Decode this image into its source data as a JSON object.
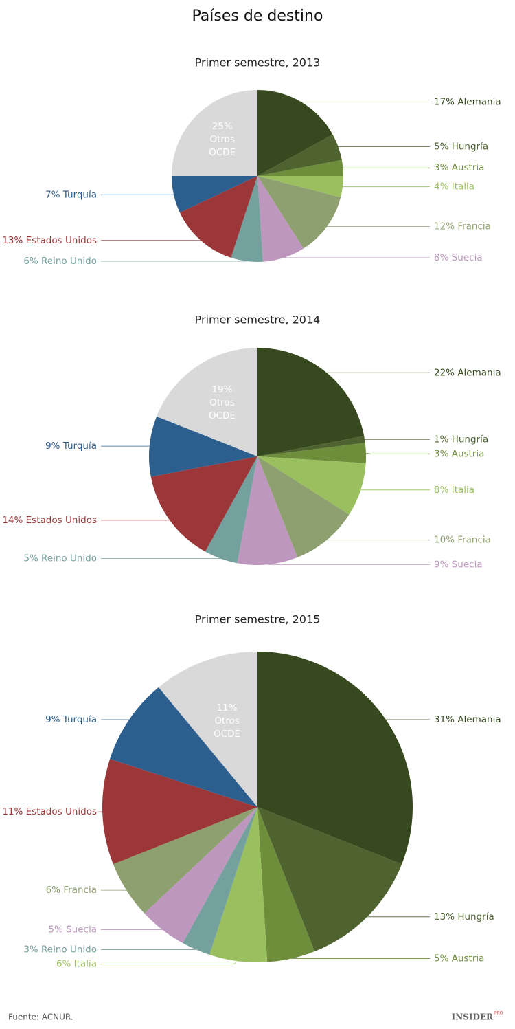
{
  "title": "Países de destino",
  "chart_data": [
    {
      "type": "pie",
      "title": "Primer semestre, 2013",
      "categories": [
        "Alemania",
        "Hungría",
        "Austria",
        "Italia",
        "Francia",
        "Suecia",
        "Reino Unido",
        "Estados Unidos",
        "Turquía",
        "Otros OCDE"
      ],
      "values": [
        17,
        5,
        3,
        4,
        12,
        8,
        6,
        13,
        7,
        25
      ],
      "value_labels": [
        "17%",
        "5%",
        "3%",
        "4%",
        "12%",
        "8%",
        "6%",
        "13%",
        "7%",
        "25%"
      ],
      "colors": [
        "#374a1f",
        "#4f6330",
        "#6e8e3c",
        "#9abf5e",
        "#8fa070",
        "#bd97bd",
        "#74a09e",
        "#9b3739",
        "#2d5f8e",
        "#d9d9d9"
      ]
    },
    {
      "type": "pie",
      "title": "Primer semestre, 2014",
      "categories": [
        "Alemania",
        "Hungría",
        "Austria",
        "Italia",
        "Francia",
        "Suecia",
        "Reino Unido",
        "Estados Unidos",
        "Turquía",
        "Otros OCDE"
      ],
      "values": [
        22,
        1,
        3,
        8,
        10,
        9,
        5,
        14,
        9,
        19
      ],
      "value_labels": [
        "22%",
        "1%",
        "3%",
        "8%",
        "10%",
        "9%",
        "5%",
        "14%",
        "9%",
        "19%"
      ],
      "colors": [
        "#374a1f",
        "#4f6330",
        "#6e8e3c",
        "#9abf5e",
        "#8fa070",
        "#bd97bd",
        "#74a09e",
        "#9b3739",
        "#2d5f8e",
        "#d9d9d9"
      ]
    },
    {
      "type": "pie",
      "title": "Primer semestre, 2015",
      "categories": [
        "Alemania",
        "Hungría",
        "Austria",
        "Italia",
        "Reino Unido",
        "Suecia",
        "Francia",
        "Estados Unidos",
        "Turquía",
        "Otros OCDE"
      ],
      "values": [
        31,
        13,
        5,
        6,
        3,
        5,
        6,
        11,
        9,
        11
      ],
      "value_labels": [
        "31%",
        "13%",
        "5%",
        "6%",
        "3%",
        "5%",
        "6%",
        "11%",
        "9%",
        "11%"
      ],
      "colors": [
        "#374a1f",
        "#4f6330",
        "#6e8e3c",
        "#9abf5e",
        "#74a09e",
        "#bd97bd",
        "#8fa070",
        "#9b3739",
        "#2d5f8e",
        "#d9d9d9"
      ]
    }
  ],
  "source": "Fuente: ACNUR.",
  "logo": {
    "name": "INSIDER",
    "tag": "PRO"
  }
}
